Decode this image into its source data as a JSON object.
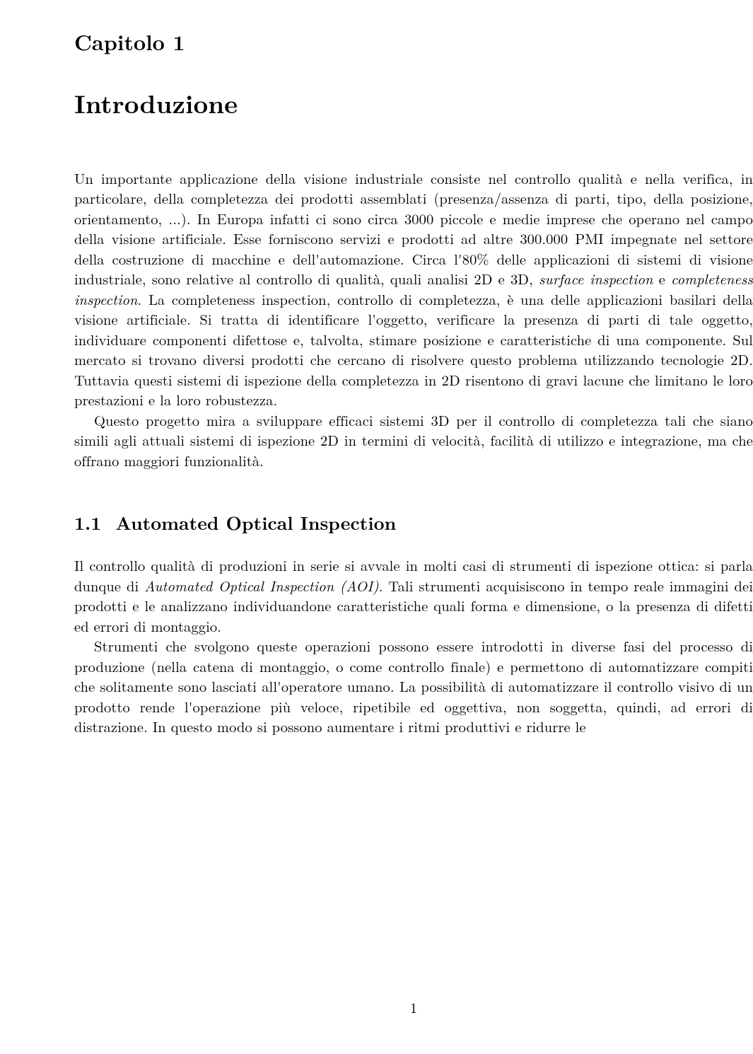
{
  "chapter": {
    "label": "Capitolo 1",
    "title": "Introduzione"
  },
  "paragraphs": {
    "p1_a": "Un importante applicazione della visione industriale consiste nel controllo qualità e nella verifica, in particolare, della completezza dei prodotti assemblati (presenza/assenza di parti, tipo, della posizione, orientamento, ...). In Europa infatti ci sono circa 3000 piccole e medie imprese che operano nel campo della visione artificiale. Esse forniscono servizi e prodotti ad altre 300.000 PMI impegnate nel settore della costruzione di macchine e dell'automazione. Circa l'80% delle applicazioni di sistemi di visione industriale, sono relative al controllo di qualità, quali analisi 2D e 3D, ",
    "p1_b": "surface inspection",
    "p1_c": " e ",
    "p1_d": "completeness inspection",
    "p1_e": ". La completeness inspection, controllo di completezza, è una delle applicazioni basilari della visione artificiale. Si tratta di identificare l'oggetto, verificare la presenza di parti di tale oggetto, individuare componenti difettose e, talvolta, stimare posizione e caratteristiche di una componente. Sul mercato si trovano diversi prodotti che cercano di risolvere questo problema utilizzando tecnologie 2D. Tuttavia questi sistemi di ispezione della completezza in 2D risentono di gravi lacune che limitano le loro prestazioni e la loro robustezza.",
    "p2": "Questo progetto mira a sviluppare efficaci sistemi 3D per il controllo di completezza tali che siano simili agli attuali sistemi di ispezione 2D in termini di velocità, facilità di utilizzo e integrazione, ma che offrano maggiori funzionalità."
  },
  "section": {
    "number": "1.1",
    "title": "Automated Optical Inspection"
  },
  "sectionParagraphs": {
    "s1_a": "Il controllo qualità di produzioni in serie si avvale in molti casi di strumenti di ispezione ottica: si parla dunque di ",
    "s1_b": "Automated Optical Inspection (AOI)",
    "s1_c": ". Tali strumenti acquisiscono in tempo reale immagini dei prodotti e le analizzano individuandone caratteristiche quali forma e dimensione, o la presenza di difetti ed errori di montaggio.",
    "s2": "Strumenti che svolgono queste operazioni possono essere introdotti in diverse fasi del processo di produzione (nella catena di montaggio, o come controllo finale) e permettono di automatizzare compiti che solitamente sono lasciati all'operatore umano. La possibilità di automatizzare il controllo visivo di un prodotto rende l'operazione più veloce, ripetibile ed oggettiva, non soggetta, quindi, ad errori di distrazione. In questo modo si possono aumentare i ritmi produttivi e ridurre le"
  },
  "pageNumber": "1"
}
